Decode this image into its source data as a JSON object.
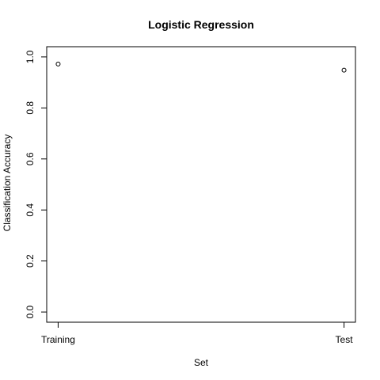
{
  "chart_data": {
    "type": "scatter",
    "title": "Logistic Regression",
    "xlabel": "Set",
    "ylabel": "Classification Accuracy",
    "categories": [
      "Training",
      "Test"
    ],
    "values": [
      0.972,
      0.948
    ],
    "ylim": [
      -0.04,
      1.04
    ],
    "yticks": [
      0.0,
      0.2,
      0.4,
      0.6,
      0.8,
      1.0
    ],
    "ytick_labels": [
      "0.0",
      "0.2",
      "0.4",
      "0.6",
      "0.8",
      "1.0"
    ],
    "grid": false,
    "legend": "none",
    "marker": "open-circle"
  }
}
